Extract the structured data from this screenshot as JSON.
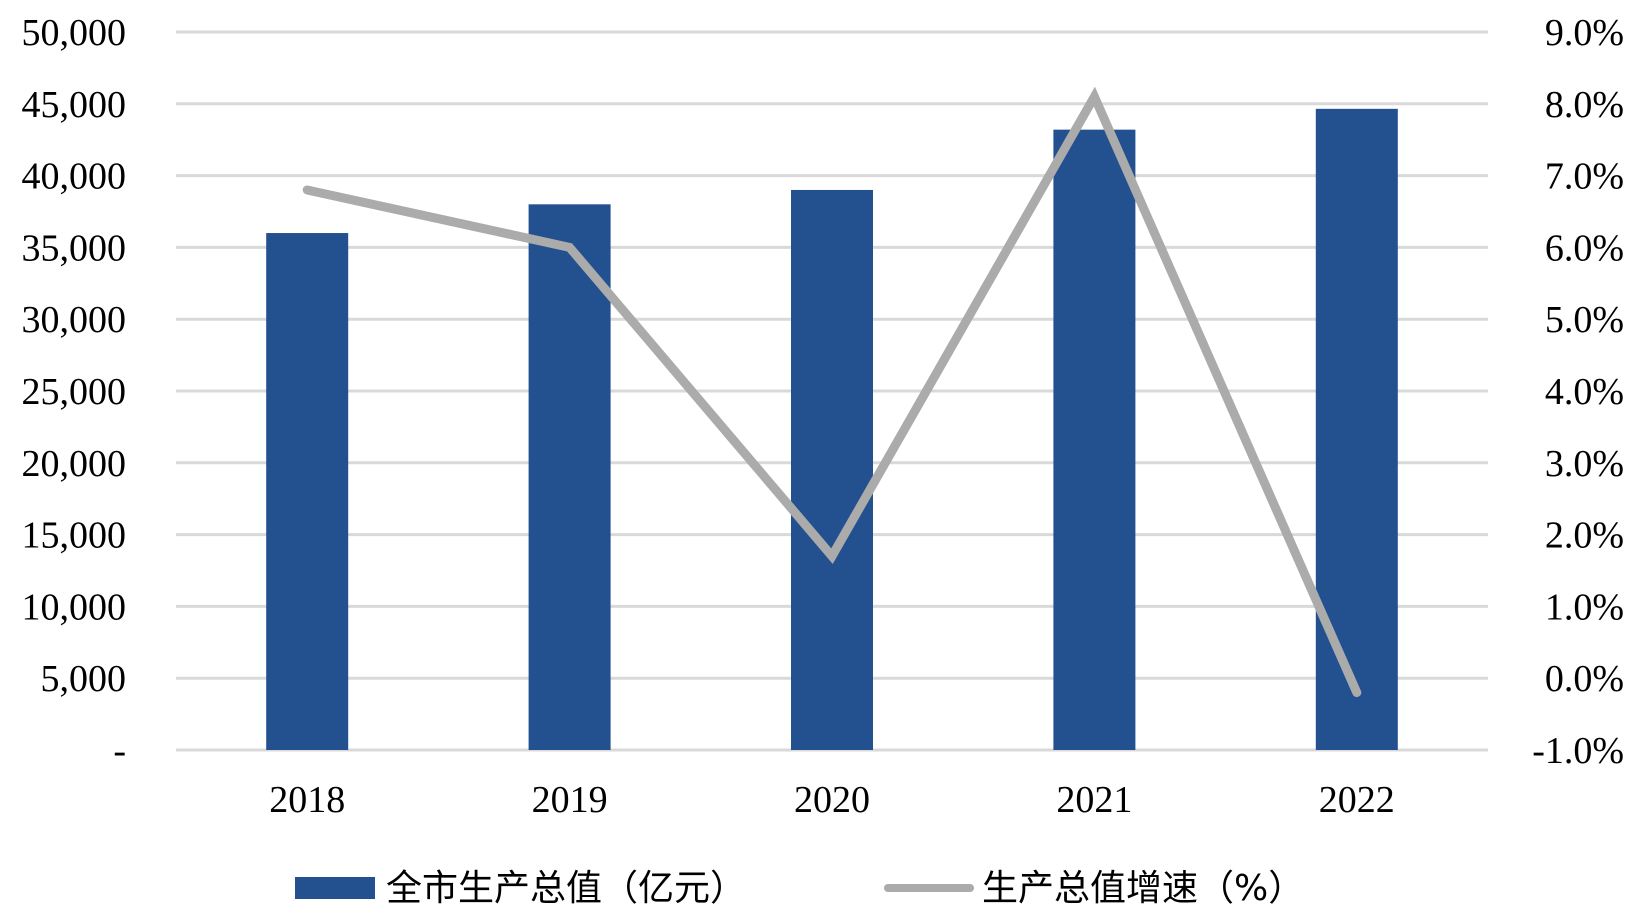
{
  "chart_data": {
    "type": "bar",
    "categories": [
      "2018",
      "2019",
      "2020",
      "2021",
      "2022"
    ],
    "series": [
      {
        "name": "全市生产总值（亿元）",
        "type": "bar",
        "axis": "left",
        "color": "#23508f",
        "values": [
          36000,
          38000,
          39000,
          43200,
          44650
        ]
      },
      {
        "name": "生产总值增速（%）",
        "type": "line",
        "axis": "right",
        "color": "#ababab",
        "values": [
          6.8,
          6.0,
          1.7,
          8.1,
          -0.2
        ]
      }
    ],
    "left_axis": {
      "min": 0,
      "max": 50000,
      "step": 5000,
      "tick_labels": [
        "-",
        "5,000",
        "10,000",
        "15,000",
        "20,000",
        "25,000",
        "30,000",
        "35,000",
        "40,000",
        "45,000",
        "50,000"
      ]
    },
    "right_axis": {
      "min": -1.0,
      "max": 9.0,
      "step": 1.0,
      "tick_labels": [
        "-1.0%",
        "0.0%",
        "1.0%",
        "2.0%",
        "3.0%",
        "4.0%",
        "5.0%",
        "6.0%",
        "7.0%",
        "8.0%",
        "9.0%"
      ]
    },
    "grid": true,
    "gridline_color": "#d9d9d9",
    "legend_position": "bottom"
  }
}
